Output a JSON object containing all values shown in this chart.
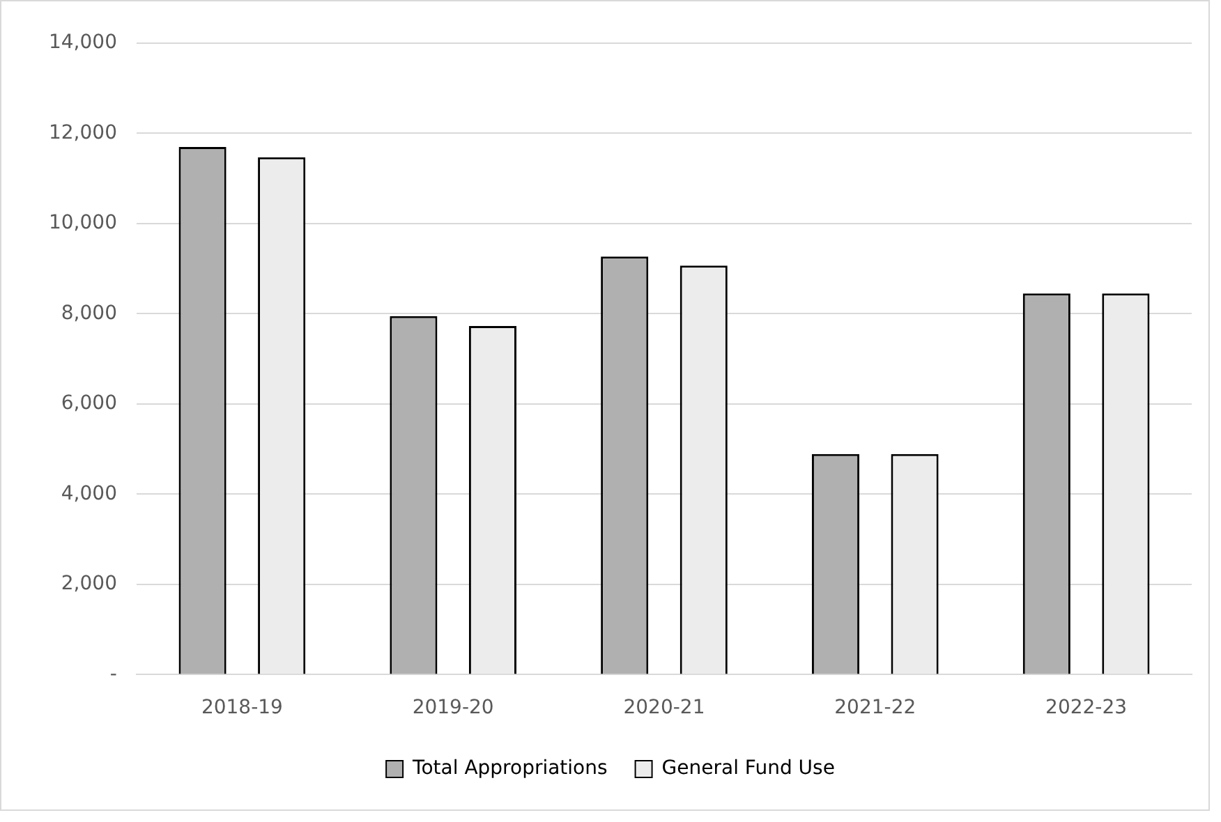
{
  "chart_data": {
    "type": "bar",
    "categories": [
      "2018-19",
      "2019-20",
      "2020-21",
      "2021-22",
      "2022-23"
    ],
    "series": [
      {
        "name": "Total Appropriations",
        "color": "#b0b0b0",
        "values": [
          11700,
          7950,
          9270,
          4890,
          8450
        ]
      },
      {
        "name": "General Fund Use",
        "color": "#ececec",
        "values": [
          11470,
          7730,
          9070,
          4890,
          8450
        ]
      }
    ],
    "ylim": [
      0,
      14000
    ],
    "yticks": [
      {
        "value": 0,
        "label": "-"
      },
      {
        "value": 2000,
        "label": "2,000"
      },
      {
        "value": 4000,
        "label": "4,000"
      },
      {
        "value": 6000,
        "label": "6,000"
      },
      {
        "value": 8000,
        "label": "8,000"
      },
      {
        "value": 10000,
        "label": "10,000"
      },
      {
        "value": 12000,
        "label": "12,000"
      },
      {
        "value": 14000,
        "label": "14,000"
      }
    ],
    "grid": "y",
    "legend": "bottom"
  }
}
